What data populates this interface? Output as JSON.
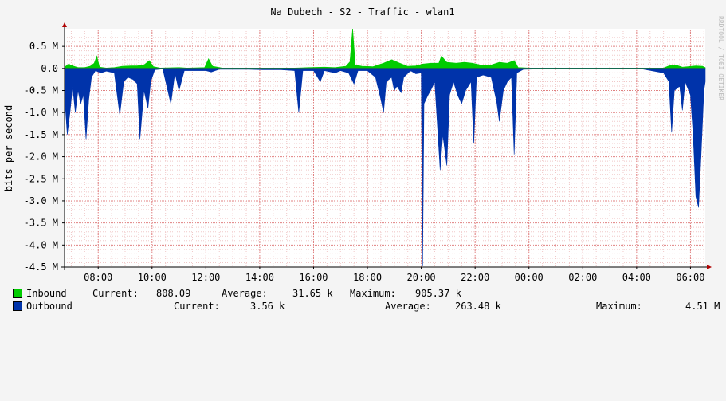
{
  "chart_data": {
    "type": "area",
    "title": "Na Dubech - S2 - Traffic - wlan1",
    "ylabel": "bits per second",
    "watermark": "RRDTOOL / TOBI OETIKER",
    "y_ticks": [
      "0.5 M",
      "0.0",
      "-0.5 M",
      "-1.0 M",
      "-1.5 M",
      "-2.0 M",
      "-2.5 M",
      "-3.0 M",
      "-3.5 M",
      "-4.0 M",
      "-4.5 M"
    ],
    "y_tick_values": [
      0.5,
      0.0,
      -0.5,
      -1.0,
      -1.5,
      -2.0,
      -2.5,
      -3.0,
      -3.5,
      -4.0,
      -4.5
    ],
    "ylim": [
      -4.5,
      0.9
    ],
    "x_tick_labels": [
      "08:00",
      "10:00",
      "12:00",
      "14:00",
      "16:00",
      "18:00",
      "20:00",
      "22:00",
      "00:00",
      "02:00",
      "04:00",
      "06:00"
    ],
    "x_tick_hours": [
      8,
      10,
      12,
      14,
      16,
      18,
      20,
      22,
      24,
      26,
      28,
      30
    ],
    "xlim_hours": [
      6.75,
      30.55
    ],
    "grid": true,
    "legend_position": "bottom",
    "series": [
      {
        "name": "Inbound",
        "color": "#00cc00",
        "points": [
          [
            6.75,
            0.03
          ],
          [
            6.9,
            0.1
          ],
          [
            7.05,
            0.06
          ],
          [
            7.25,
            0.02
          ],
          [
            7.5,
            0.02
          ],
          [
            7.7,
            0.05
          ],
          [
            7.85,
            0.12
          ],
          [
            7.95,
            0.28
          ],
          [
            8.05,
            0.03
          ],
          [
            8.3,
            0.01
          ],
          [
            8.6,
            0.02
          ],
          [
            8.9,
            0.05
          ],
          [
            9.2,
            0.06
          ],
          [
            9.45,
            0.06
          ],
          [
            9.7,
            0.08
          ],
          [
            9.9,
            0.18
          ],
          [
            10.05,
            0.04
          ],
          [
            10.3,
            0.01
          ],
          [
            11.0,
            0.02
          ],
          [
            11.3,
            0.01
          ],
          [
            11.95,
            0.02
          ],
          [
            12.1,
            0.22
          ],
          [
            12.25,
            0.05
          ],
          [
            12.6,
            0.01
          ],
          [
            13.3,
            0.01
          ],
          [
            14.2,
            0.01
          ],
          [
            14.8,
            0.01
          ],
          [
            15.3,
            0.01
          ],
          [
            15.8,
            0.02
          ],
          [
            16.4,
            0.03
          ],
          [
            16.8,
            0.02
          ],
          [
            17.2,
            0.05
          ],
          [
            17.35,
            0.15
          ],
          [
            17.45,
            0.9
          ],
          [
            17.55,
            0.08
          ],
          [
            17.8,
            0.05
          ],
          [
            18.2,
            0.04
          ],
          [
            18.6,
            0.12
          ],
          [
            18.9,
            0.2
          ],
          [
            19.2,
            0.12
          ],
          [
            19.5,
            0.05
          ],
          [
            19.8,
            0.06
          ],
          [
            20.05,
            0.1
          ],
          [
            20.35,
            0.12
          ],
          [
            20.65,
            0.12
          ],
          [
            20.75,
            0.28
          ],
          [
            20.95,
            0.14
          ],
          [
            21.3,
            0.12
          ],
          [
            21.6,
            0.14
          ],
          [
            21.9,
            0.12
          ],
          [
            22.2,
            0.08
          ],
          [
            22.6,
            0.08
          ],
          [
            22.9,
            0.14
          ],
          [
            23.2,
            0.12
          ],
          [
            23.45,
            0.18
          ],
          [
            23.6,
            0.02
          ],
          [
            24.0,
            0.01
          ],
          [
            25.0,
            0.01
          ],
          [
            26.5,
            0.01
          ],
          [
            28.0,
            0.01
          ],
          [
            29.0,
            0.01
          ],
          [
            29.2,
            0.06
          ],
          [
            29.45,
            0.08
          ],
          [
            29.7,
            0.03
          ],
          [
            29.9,
            0.04
          ],
          [
            30.2,
            0.06
          ],
          [
            30.45,
            0.05
          ],
          [
            30.55,
            0.02
          ]
        ]
      },
      {
        "name": "Outbound",
        "color": "#0033aa",
        "points": [
          [
            6.75,
            -0.6
          ],
          [
            6.85,
            -1.5
          ],
          [
            6.95,
            -1.0
          ],
          [
            7.05,
            -0.4
          ],
          [
            7.15,
            -1.0
          ],
          [
            7.25,
            -0.5
          ],
          [
            7.35,
            -0.8
          ],
          [
            7.45,
            -0.6
          ],
          [
            7.55,
            -1.6
          ],
          [
            7.65,
            -0.7
          ],
          [
            7.75,
            -0.2
          ],
          [
            7.9,
            -0.05
          ],
          [
            8.1,
            -0.1
          ],
          [
            8.3,
            -0.06
          ],
          [
            8.6,
            -0.1
          ],
          [
            8.8,
            -1.05
          ],
          [
            8.95,
            -0.3
          ],
          [
            9.1,
            -0.2
          ],
          [
            9.3,
            -0.25
          ],
          [
            9.45,
            -0.35
          ],
          [
            9.55,
            -1.6
          ],
          [
            9.7,
            -0.5
          ],
          [
            9.85,
            -0.9
          ],
          [
            9.95,
            -0.3
          ],
          [
            10.1,
            -0.03
          ],
          [
            10.4,
            -0.01
          ],
          [
            10.7,
            -0.8
          ],
          [
            10.85,
            -0.1
          ],
          [
            11.0,
            -0.5
          ],
          [
            11.2,
            -0.05
          ],
          [
            12.0,
            -0.05
          ],
          [
            12.2,
            -0.08
          ],
          [
            12.5,
            -0.02
          ],
          [
            13.0,
            -0.02
          ],
          [
            13.6,
            -0.02
          ],
          [
            14.1,
            -0.03
          ],
          [
            14.8,
            -0.03
          ],
          [
            15.3,
            -0.05
          ],
          [
            15.45,
            -1.0
          ],
          [
            15.6,
            -0.05
          ],
          [
            16.0,
            -0.05
          ],
          [
            16.25,
            -0.3
          ],
          [
            16.4,
            -0.05
          ],
          [
            16.8,
            -0.1
          ],
          [
            17.0,
            -0.05
          ],
          [
            17.3,
            -0.1
          ],
          [
            17.5,
            -0.35
          ],
          [
            17.65,
            -0.05
          ],
          [
            18.0,
            -0.05
          ],
          [
            18.3,
            -0.2
          ],
          [
            18.5,
            -0.7
          ],
          [
            18.6,
            -1.0
          ],
          [
            18.7,
            -0.3
          ],
          [
            18.9,
            -0.2
          ],
          [
            19.0,
            -0.5
          ],
          [
            19.1,
            -0.4
          ],
          [
            19.25,
            -0.55
          ],
          [
            19.35,
            -0.2
          ],
          [
            19.6,
            -0.05
          ],
          [
            19.8,
            -0.12
          ],
          [
            20.0,
            -0.1
          ],
          [
            20.05,
            -4.48
          ],
          [
            20.1,
            -0.8
          ],
          [
            20.25,
            -0.6
          ],
          [
            20.35,
            -0.5
          ],
          [
            20.5,
            -0.3
          ],
          [
            20.7,
            -2.3
          ],
          [
            20.8,
            -1.5
          ],
          [
            20.95,
            -2.2
          ],
          [
            21.05,
            -0.6
          ],
          [
            21.2,
            -0.3
          ],
          [
            21.35,
            -0.6
          ],
          [
            21.5,
            -0.8
          ],
          [
            21.65,
            -0.5
          ],
          [
            21.85,
            -0.3
          ],
          [
            21.95,
            -1.7
          ],
          [
            22.05,
            -0.2
          ],
          [
            22.3,
            -0.15
          ],
          [
            22.6,
            -0.2
          ],
          [
            22.8,
            -0.75
          ],
          [
            22.9,
            -1.2
          ],
          [
            23.05,
            -0.5
          ],
          [
            23.2,
            -0.3
          ],
          [
            23.35,
            -0.2
          ],
          [
            23.45,
            -1.95
          ],
          [
            23.55,
            -0.1
          ],
          [
            23.8,
            -0.02
          ],
          [
            24.5,
            -0.01
          ],
          [
            25.5,
            -0.01
          ],
          [
            26.8,
            -0.01
          ],
          [
            28.2,
            -0.01
          ],
          [
            29.0,
            -0.1
          ],
          [
            29.2,
            -0.3
          ],
          [
            29.3,
            -1.45
          ],
          [
            29.4,
            -0.5
          ],
          [
            29.6,
            -0.4
          ],
          [
            29.7,
            -0.95
          ],
          [
            29.8,
            -0.3
          ],
          [
            30.0,
            -0.6
          ],
          [
            30.1,
            -1.5
          ],
          [
            30.2,
            -2.9
          ],
          [
            30.3,
            -3.15
          ],
          [
            30.4,
            -1.9
          ],
          [
            30.5,
            -0.5
          ],
          [
            30.55,
            -0.3
          ]
        ]
      }
    ],
    "legend": [
      {
        "name": "Inbound",
        "current_label": "Current:",
        "current": "808.09",
        "average_label": "Average:",
        "average": "31.65 k",
        "maximum_label": "Maximum:",
        "maximum": "905.37 k"
      },
      {
        "name": "Outbound",
        "current_label": "Current:",
        "current": "3.56 k",
        "average_label": "Average:",
        "average": "263.48 k",
        "maximum_label": "Maximum:",
        "maximum": "4.51 M"
      }
    ]
  }
}
